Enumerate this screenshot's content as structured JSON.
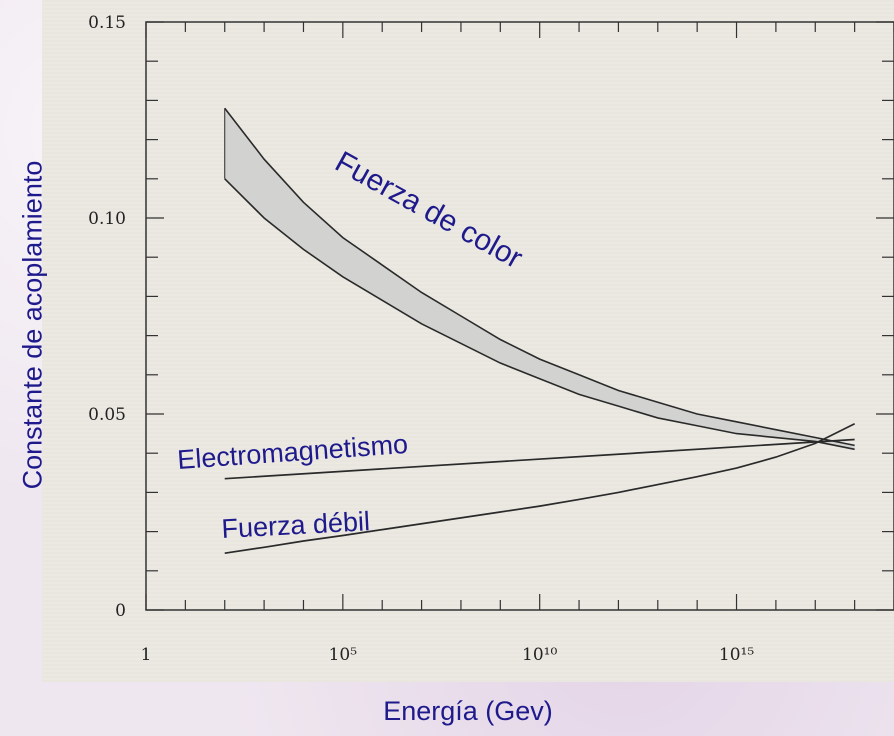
{
  "chart_data": {
    "type": "line",
    "xlabel": "Energía (Gev)",
    "ylabel": "Constante de acoplamiento",
    "x_scale": "log",
    "xlim": [
      1,
      1e+19
    ],
    "ylim": [
      0,
      0.15
    ],
    "x_ticks": [
      {
        "value": 1,
        "label": "1"
      },
      {
        "value": 100000.0,
        "label": "10⁵"
      },
      {
        "value": 10000000000.0,
        "label": "10¹⁰"
      },
      {
        "value": 1000000000000000.0,
        "label": "10¹⁵"
      }
    ],
    "y_ticks": [
      {
        "value": 0,
        "label": "0"
      },
      {
        "value": 0.05,
        "label": "0.05"
      },
      {
        "value": 0.1,
        "label": "0.10"
      },
      {
        "value": 0.15,
        "label": "0.15"
      }
    ],
    "grid": false,
    "series": [
      {
        "name": "Fuerza de color",
        "x": [
          100,
          1000.0,
          10000.0,
          100000.0,
          1000000.0,
          10000000.0,
          100000000.0,
          1000000000.0,
          10000000000.0,
          100000000000.0,
          1000000000000.0,
          10000000000000.0,
          100000000000000.0,
          1000000000000000.0,
          1e+16,
          1e+17,
          1e+18
        ],
        "y_upper": [
          0.128,
          0.115,
          0.104,
          0.095,
          0.088,
          0.081,
          0.075,
          0.069,
          0.064,
          0.06,
          0.056,
          0.053,
          0.05,
          0.048,
          0.046,
          0.044,
          0.042
        ],
        "y_lower": [
          0.11,
          0.1,
          0.092,
          0.085,
          0.079,
          0.073,
          0.068,
          0.063,
          0.059,
          0.055,
          0.052,
          0.049,
          0.047,
          0.045,
          0.044,
          0.043,
          0.041
        ],
        "style": "band",
        "color": "#d2d2d0"
      },
      {
        "name": "Electromagnetismo",
        "x": [
          100,
          1e+18
        ],
        "y": [
          0.0335,
          0.0435
        ],
        "color": "#2a2a2a"
      },
      {
        "name": "Fuerza débil",
        "x": [
          100,
          1000.0,
          10000.0,
          100000.0,
          1000000.0,
          10000000.0,
          100000000.0,
          1000000000.0,
          10000000000.0,
          100000000000.0,
          1000000000000.0,
          10000000000000.0,
          100000000000000.0,
          1000000000000000.0,
          1e+16,
          1e+17,
          1e+18
        ],
        "y": [
          0.0145,
          0.016,
          0.0176,
          0.019,
          0.0205,
          0.022,
          0.0235,
          0.025,
          0.0265,
          0.0282,
          0.03,
          0.032,
          0.034,
          0.0362,
          0.039,
          0.0425,
          0.0475
        ],
        "color": "#2a2a2a"
      }
    ],
    "annotations": [
      {
        "text": "Fuerza de color",
        "series": "Fuerza de color"
      },
      {
        "text": "Electromagnetismo",
        "series": "Electromagnetismo"
      },
      {
        "text": "Fuerza débil",
        "series": "Fuerza débil"
      }
    ]
  }
}
